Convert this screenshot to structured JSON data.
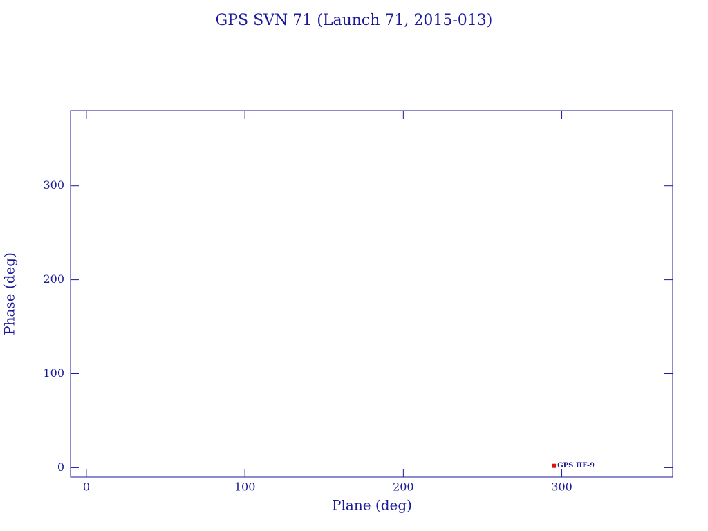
{
  "chart_data": {
    "type": "scatter",
    "title": "GPS SVN 71 (Launch 71, 2015-013)",
    "x_label": "Plane (deg)",
    "y_label": "Phase (deg)",
    "points": [
      {
        "label": "GPS IIF-9",
        "x": 295,
        "y": 2,
        "color": "#e01010"
      }
    ],
    "xlim": [
      -10,
      370
    ],
    "ylim": [
      -10,
      380
    ],
    "xticks": [
      0,
      100,
      200,
      300
    ],
    "yticks": [
      0,
      100,
      200,
      300
    ],
    "axis_color": "#1a1a9a"
  }
}
